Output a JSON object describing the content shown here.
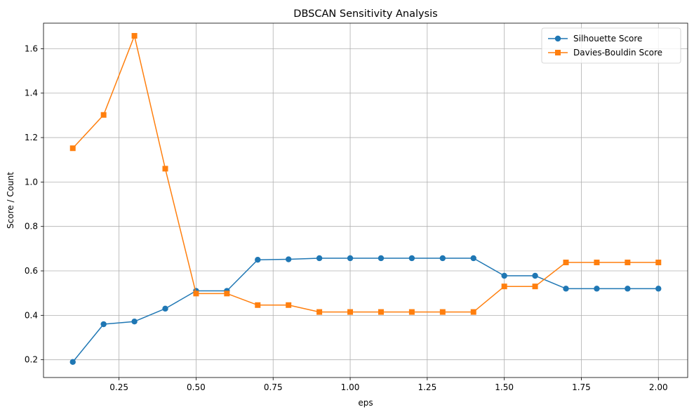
{
  "chart_data": {
    "type": "line",
    "title": "DBSCAN Sensitivity Analysis",
    "xlabel": "eps",
    "ylabel": "Score / Count",
    "xlim": [
      0.005,
      2.095
    ],
    "ylim": [
      0.12,
      1.715
    ],
    "x_ticks": [
      0.25,
      0.5,
      0.75,
      1.0,
      1.25,
      1.5,
      1.75,
      2.0
    ],
    "x_tick_labels": [
      "0.25",
      "0.50",
      "0.75",
      "1.00",
      "1.25",
      "1.50",
      "1.75",
      "2.00"
    ],
    "y_ticks": [
      0.2,
      0.4,
      0.6,
      0.8,
      1.0,
      1.2,
      1.4,
      1.6
    ],
    "y_tick_labels": [
      "0.2",
      "0.4",
      "0.6",
      "0.8",
      "1.0",
      "1.2",
      "1.4",
      "1.6"
    ],
    "grid": true,
    "legend_position": "top-right",
    "x": [
      0.1,
      0.2,
      0.3,
      0.4,
      0.5,
      0.6,
      0.7,
      0.8,
      0.9,
      1.0,
      1.1,
      1.2,
      1.3,
      1.4,
      1.5,
      1.6,
      1.7,
      1.8,
      1.9,
      2.0
    ],
    "series": [
      {
        "name": "Silhouette Score",
        "color": "#1f77b4",
        "marker": "circle",
        "values": [
          0.19,
          0.36,
          0.372,
          0.43,
          0.51,
          0.51,
          0.65,
          0.652,
          0.657,
          0.657,
          0.657,
          0.657,
          0.657,
          0.657,
          0.578,
          0.578,
          0.52,
          0.52,
          0.52,
          0.52
        ]
      },
      {
        "name": "Davies-Bouldin Score",
        "color": "#ff7f0e",
        "marker": "square",
        "values": [
          1.152,
          1.302,
          1.658,
          1.06,
          0.498,
          0.498,
          0.446,
          0.446,
          0.415,
          0.415,
          0.415,
          0.415,
          0.415,
          0.415,
          0.53,
          0.53,
          0.638,
          0.638,
          0.638,
          0.638
        ]
      }
    ]
  }
}
